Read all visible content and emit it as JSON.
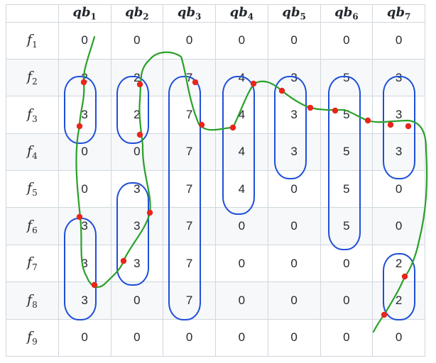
{
  "table": {
    "column_headers": [
      {
        "base": "qb",
        "sub": "1"
      },
      {
        "base": "qb",
        "sub": "2"
      },
      {
        "base": "qb",
        "sub": "3"
      },
      {
        "base": "qb",
        "sub": "4"
      },
      {
        "base": "qb",
        "sub": "5"
      },
      {
        "base": "qb",
        "sub": "6"
      },
      {
        "base": "qb",
        "sub": "7"
      }
    ],
    "rows": [
      {
        "label": {
          "base": "f",
          "sub": "1"
        },
        "cells": [
          "0",
          "0",
          "0",
          "0",
          "0",
          "0",
          "0"
        ]
      },
      {
        "label": {
          "base": "f",
          "sub": "2"
        },
        "cells": [
          "2",
          "2",
          "7",
          "4",
          "3",
          "5",
          "3"
        ]
      },
      {
        "label": {
          "base": "f",
          "sub": "3"
        },
        "cells": [
          "3",
          "2",
          "7",
          "4",
          "3",
          "5",
          "3"
        ]
      },
      {
        "label": {
          "base": "f",
          "sub": "4"
        },
        "cells": [
          "0",
          "0",
          "7",
          "4",
          "3",
          "5",
          "3"
        ]
      },
      {
        "label": {
          "base": "f",
          "sub": "5"
        },
        "cells": [
          "0",
          "3",
          "7",
          "4",
          "0",
          "5",
          "0"
        ]
      },
      {
        "label": {
          "base": "f",
          "sub": "6"
        },
        "cells": [
          "3",
          "3",
          "7",
          "0",
          "0",
          "5",
          "0"
        ]
      },
      {
        "label": {
          "base": "f",
          "sub": "7"
        },
        "cells": [
          "3",
          "3",
          "7",
          "0",
          "0",
          "0",
          "2"
        ]
      },
      {
        "label": {
          "base": "f",
          "sub": "8"
        },
        "cells": [
          "3",
          "0",
          "7",
          "0",
          "0",
          "0",
          "2"
        ]
      },
      {
        "label": {
          "base": "f",
          "sub": "9"
        },
        "cells": [
          "0",
          "0",
          "0",
          "0",
          "0",
          "0",
          "0"
        ]
      }
    ]
  },
  "annotations": {
    "blue_circle_color": "#1f4fd8",
    "green_path_color": "#2aa02a",
    "red_mark_color": "#e8261b",
    "circled_groups": [
      {
        "column": 1,
        "from_row": 2,
        "to_row": 3
      },
      {
        "column": 1,
        "from_row": 6,
        "to_row": 8
      },
      {
        "column": 2,
        "from_row": 2,
        "to_row": 3
      },
      {
        "column": 2,
        "from_row": 5,
        "to_row": 7
      },
      {
        "column": 3,
        "from_row": 2,
        "to_row": 8
      },
      {
        "column": 4,
        "from_row": 2,
        "to_row": 5
      },
      {
        "column": 5,
        "from_row": 2,
        "to_row": 4
      },
      {
        "column": 6,
        "from_row": 2,
        "to_row": 6
      },
      {
        "column": 7,
        "from_row": 2,
        "to_row": 4
      },
      {
        "column": 7,
        "from_row": 7,
        "to_row": 8
      }
    ]
  }
}
